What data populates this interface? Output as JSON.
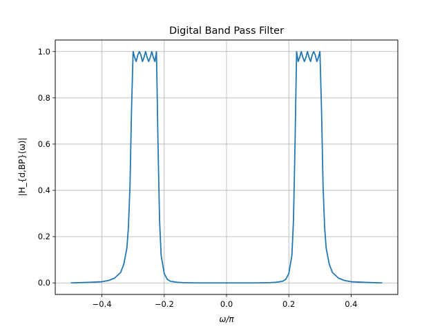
{
  "chart_data": {
    "type": "line",
    "title": "Digital Band Pass Filter",
    "xlabel": "ω/π",
    "ylabel": "|H_{d,BP}(ω)|",
    "xlim": [
      -0.55,
      0.55
    ],
    "ylim": [
      -0.05,
      1.05
    ],
    "grid": true,
    "x_ticks": [
      -0.4,
      -0.2,
      0.0,
      0.2,
      0.4
    ],
    "x_tick_labels": [
      "−0.4",
      "−0.2",
      "0.0",
      "0.2",
      "0.4"
    ],
    "y_ticks": [
      0.0,
      0.2,
      0.4,
      0.6,
      0.8,
      1.0
    ],
    "y_tick_labels": [
      "0.0",
      "0.2",
      "0.4",
      "0.6",
      "0.8",
      "1.0"
    ],
    "series": [
      {
        "color": "#1f77b4",
        "x": [
          -0.5,
          -0.45,
          -0.4,
          -0.38,
          -0.36,
          -0.34,
          -0.33,
          -0.32,
          -0.315,
          -0.31,
          -0.305,
          -0.3,
          -0.295,
          -0.29,
          -0.285,
          -0.28,
          -0.275,
          -0.27,
          -0.265,
          -0.26,
          -0.255,
          -0.25,
          -0.245,
          -0.24,
          -0.235,
          -0.23,
          -0.225,
          -0.22,
          -0.215,
          -0.21,
          -0.2,
          -0.19,
          -0.18,
          -0.16,
          -0.14,
          -0.1,
          -0.05,
          0.0,
          0.05,
          0.1,
          0.14,
          0.16,
          0.18,
          0.19,
          0.2,
          0.21,
          0.215,
          0.22,
          0.225,
          0.23,
          0.235,
          0.24,
          0.245,
          0.25,
          0.255,
          0.26,
          0.265,
          0.27,
          0.275,
          0.28,
          0.285,
          0.29,
          0.295,
          0.3,
          0.305,
          0.31,
          0.315,
          0.32,
          0.33,
          0.34,
          0.36,
          0.38,
          0.4,
          0.45,
          0.5
        ],
        "y": [
          0.0,
          0.002,
          0.005,
          0.01,
          0.02,
          0.045,
          0.08,
          0.15,
          0.24,
          0.42,
          0.75,
          1.0,
          0.975,
          0.957,
          0.985,
          1.0,
          0.985,
          0.957,
          0.975,
          1.0,
          0.975,
          0.957,
          0.975,
          1.0,
          0.975,
          0.957,
          1.0,
          0.6,
          0.27,
          0.12,
          0.04,
          0.015,
          0.007,
          0.003,
          0.001,
          0.0,
          0.0,
          0.0,
          0.0,
          0.0,
          0.001,
          0.003,
          0.007,
          0.015,
          0.04,
          0.12,
          0.27,
          0.6,
          1.0,
          0.957,
          0.975,
          1.0,
          0.975,
          0.957,
          0.975,
          1.0,
          0.975,
          0.957,
          0.985,
          1.0,
          0.985,
          0.957,
          0.975,
          1.0,
          0.75,
          0.42,
          0.24,
          0.15,
          0.08,
          0.045,
          0.02,
          0.01,
          0.005,
          0.002,
          0.0
        ]
      }
    ]
  }
}
